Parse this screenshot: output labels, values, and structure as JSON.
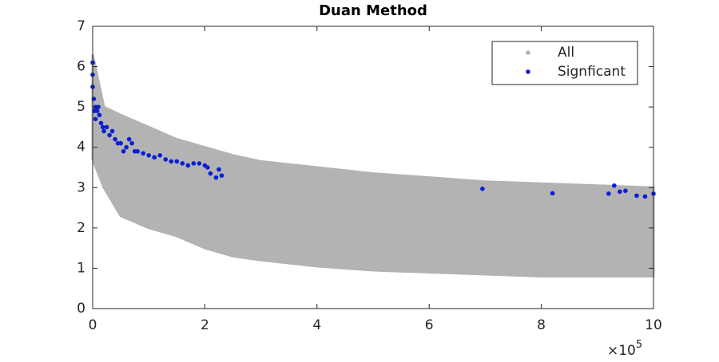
{
  "chart_data": {
    "type": "scatter",
    "title": "Duan Method",
    "x_multiplier": "×10",
    "x_multiplier_exponent": "5",
    "xlim": [
      0,
      10
    ],
    "xticks": [
      0,
      2,
      4,
      6,
      8,
      10
    ],
    "ylim": [
      0,
      7
    ],
    "yticks": [
      0,
      1,
      2,
      3,
      4,
      5,
      6,
      7
    ],
    "legend": "upper right",
    "series": [
      {
        "name": "All",
        "color": "#b3b3b3",
        "x": [
          0,
          0.2,
          0.5,
          1,
          1.5,
          2,
          2.5,
          3,
          4,
          5,
          6,
          7,
          8,
          9,
          10
        ],
        "upper": [
          6.3,
          5.0,
          4.8,
          4.5,
          4.2,
          4.0,
          3.8,
          3.65,
          3.5,
          3.35,
          3.25,
          3.15,
          3.1,
          3.05,
          3.0
        ],
        "lower": [
          3.7,
          3.0,
          2.3,
          2.0,
          1.8,
          1.5,
          1.3,
          1.2,
          1.05,
          0.95,
          0.9,
          0.85,
          0.8,
          0.8,
          0.8
        ]
      },
      {
        "name": "Signficant",
        "color": "#0a1fd6",
        "x": [
          0.0,
          0.0,
          0.0,
          0.02,
          0.03,
          0.05,
          0.05,
          0.08,
          0.1,
          0.12,
          0.15,
          0.18,
          0.2,
          0.25,
          0.3,
          0.35,
          0.4,
          0.45,
          0.5,
          0.55,
          0.6,
          0.65,
          0.7,
          0.75,
          0.8,
          0.9,
          1.0,
          1.1,
          1.2,
          1.3,
          1.4,
          1.5,
          1.6,
          1.7,
          1.8,
          1.9,
          2.0,
          2.05,
          2.1,
          2.2,
          2.25,
          2.3,
          6.95,
          8.2,
          9.2,
          9.3,
          9.4,
          9.5,
          9.7,
          9.85,
          10.0
        ],
        "values": [
          6.1,
          5.8,
          5.5,
          5.2,
          4.9,
          5.0,
          4.7,
          4.9,
          5.0,
          4.8,
          4.6,
          4.5,
          4.4,
          4.5,
          4.3,
          4.4,
          4.2,
          4.1,
          4.1,
          3.9,
          4.0,
          4.2,
          4.1,
          3.9,
          3.9,
          3.85,
          3.8,
          3.75,
          3.8,
          3.7,
          3.65,
          3.65,
          3.6,
          3.55,
          3.6,
          3.6,
          3.55,
          3.5,
          3.35,
          3.25,
          3.45,
          3.3,
          2.97,
          2.86,
          2.85,
          3.05,
          2.9,
          2.92,
          2.8,
          2.78,
          2.85
        ]
      }
    ]
  }
}
